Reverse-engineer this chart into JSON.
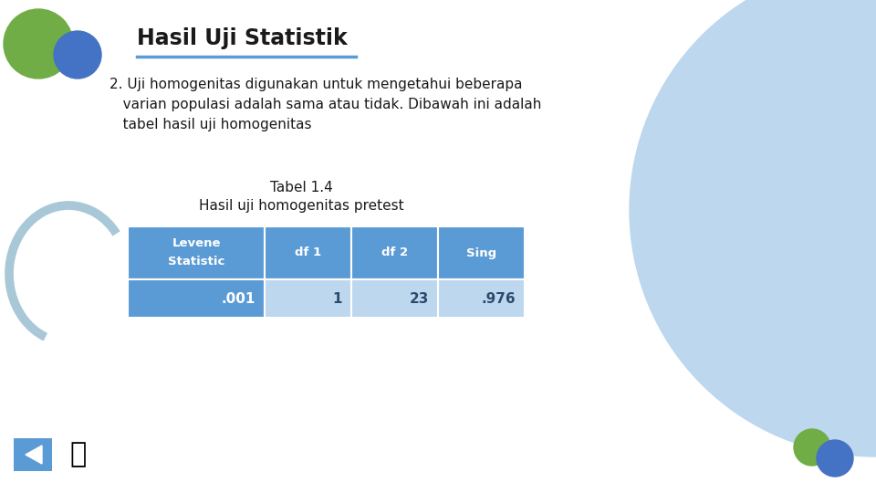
{
  "title": "Hasil Uji Statistik",
  "background_color": "#ffffff",
  "body_text_line1": "2. Uji homogenitas digunakan untuk mengetahui beberapa",
  "body_text_line2": "   varian populasi adalah sama atau tidak. Dibawah ini adalah",
  "body_text_line3": "   tabel hasil uji homogenitas",
  "table_title": "Tabel 1.4",
  "table_subtitle": "Hasil uji homogenitas pretest",
  "header_row": [
    "Levene\n\nStatistic",
    "df 1",
    "df 2",
    "Sing"
  ],
  "data_row": [
    ".001",
    "1",
    "23",
    ".976"
  ],
  "header_bg": "#5b9bd5",
  "header_text": "#ffffff",
  "data_bg_col0": "#5b9bd5",
  "data_bg_others": "#bdd7ee",
  "data_text_col0": "#ffffff",
  "data_text_others": "#2c4a6e",
  "title_color": "#1a1a1a",
  "body_text_color": "#1a1a1a",
  "underline_color": "#5b9bd5",
  "green_circle_color": "#70ad47",
  "blue_circle_color": "#4472c4",
  "light_blue_big_circle": "#bdd7ee",
  "arc_color": "#a8c8d8",
  "small_green_circle": "#70ad47",
  "small_blue_circle": "#4472c4",
  "nav_bg": "#5b9bd5"
}
